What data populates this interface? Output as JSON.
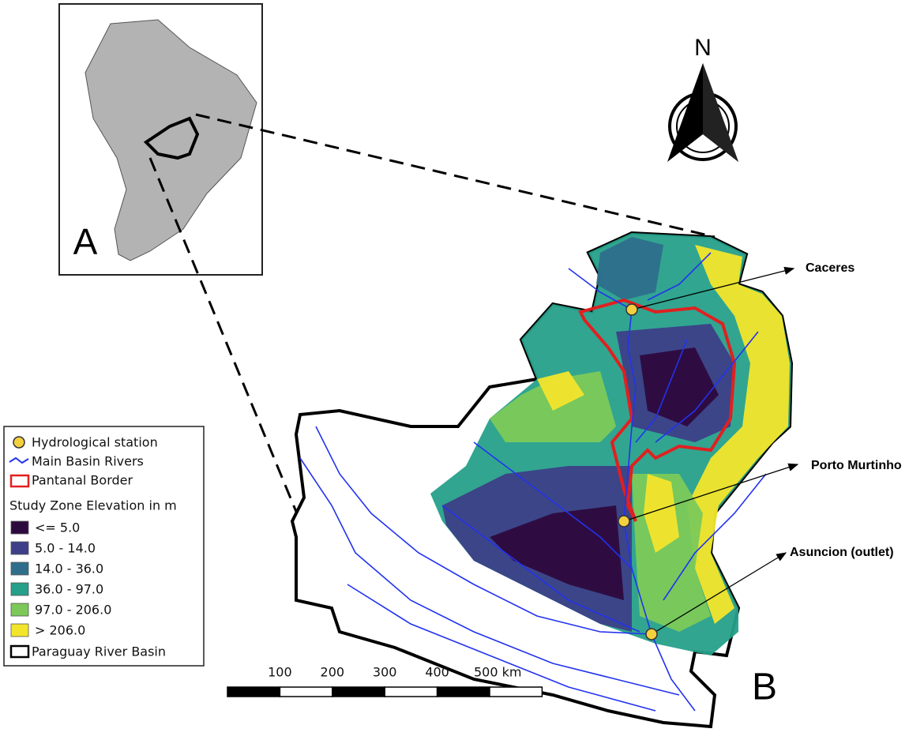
{
  "inset": {
    "label": "A"
  },
  "map": {
    "label": "B",
    "north": "N"
  },
  "stations": [
    {
      "name": "Caceres"
    },
    {
      "name": "Porto Murtinho"
    },
    {
      "name": "Asuncion (outlet)"
    }
  ],
  "legend": {
    "items": [
      {
        "label": "Hydrological station"
      },
      {
        "label": "Main Basin Rivers"
      },
      {
        "label": "Pantanal Border"
      }
    ],
    "elevation_title": "Study Zone Elevation in m",
    "classes": [
      {
        "label": "<= 5.0",
        "color": "#2d0a3e"
      },
      {
        "label": "5.0 - 14.0",
        "color": "#3d3f88"
      },
      {
        "label": "14.0 - 36.0",
        "color": "#2e6e8c"
      },
      {
        "label": "36.0 - 97.0",
        "color": "#26a08a"
      },
      {
        "label": "97.0 - 206.0",
        "color": "#7cc95a"
      },
      {
        "label": "> 206.0",
        "color": "#f3e52b"
      }
    ],
    "basin": "Paraguay River Basin"
  },
  "scale_bar": {
    "labels": [
      "100",
      "200",
      "300",
      "400",
      "500 km"
    ]
  }
}
